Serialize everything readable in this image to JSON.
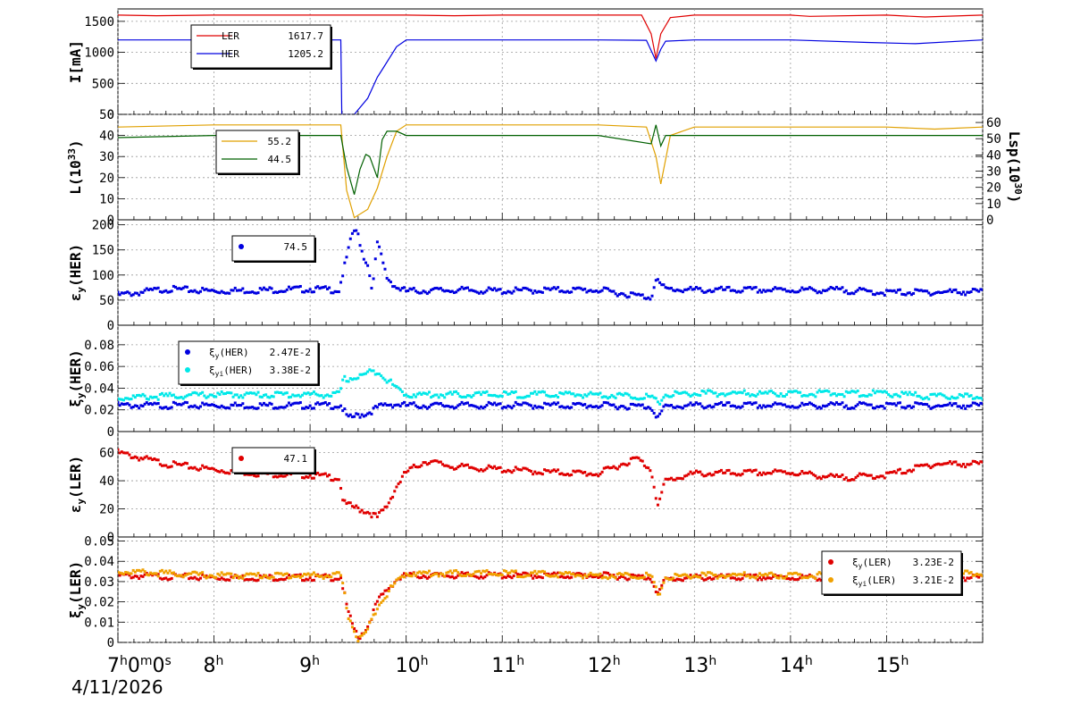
{
  "chart_data": [
    {
      "type": "line",
      "ylabel": "I[mA]",
      "ylim": [
        0,
        1700
      ],
      "yticks": [
        0,
        500,
        1000,
        1500
      ],
      "grid": true,
      "legend": {
        "placement": "top-left",
        "entries": [
          {
            "name": "LER",
            "value": "1617.7",
            "color": "#e00000"
          },
          {
            "name": "HER",
            "value": "1205.2",
            "color": "#0000e0"
          }
        ]
      },
      "series": [
        {
          "name": "LER",
          "color": "#e00000",
          "x": [
            7.0,
            7.4,
            8.0,
            9.0,
            9.5,
            10.0,
            10.5,
            11.0,
            12.0,
            12.45,
            12.55,
            12.6,
            12.65,
            12.75,
            13.0,
            14.0,
            14.2,
            15.0,
            15.4,
            16.0
          ],
          "y": [
            1600,
            1590,
            1600,
            1600,
            1600,
            1600,
            1590,
            1600,
            1600,
            1600,
            1300,
            900,
            1300,
            1560,
            1600,
            1600,
            1580,
            1600,
            1570,
            1600
          ]
        },
        {
          "name": "HER",
          "color": "#0000e0",
          "x": [
            7.0,
            9.32,
            9.33,
            9.46,
            9.6,
            9.7,
            9.75,
            9.9,
            10.0,
            11.0,
            12.0,
            12.5,
            12.6,
            12.65,
            12.7,
            13.0,
            14.0,
            14.8,
            15.3,
            16.0
          ],
          "y": [
            1200,
            1200,
            0,
            0,
            260,
            600,
            720,
            1090,
            1200,
            1200,
            1200,
            1195,
            860,
            1050,
            1180,
            1200,
            1200,
            1160,
            1140,
            1200
          ]
        }
      ]
    },
    {
      "type": "line",
      "ylabel": "L(10^33)",
      "y2label": "Lsp(10^30)",
      "ylim": [
        0,
        50
      ],
      "yticks": [
        0,
        10,
        20,
        30,
        40,
        50
      ],
      "y2lim": [
        0,
        65
      ],
      "y2ticks": [
        0,
        10,
        20,
        30,
        40,
        50,
        60
      ],
      "grid": true,
      "legend": {
        "placement": "top-left",
        "entries": [
          {
            "name": "",
            "value": "55.2",
            "color": "#e0a000"
          },
          {
            "name": "",
            "value": "44.5",
            "color": "#006000"
          }
        ]
      },
      "series": [
        {
          "color": "#e0a000",
          "x": [
            7.0,
            8.0,
            9.0,
            9.32,
            9.38,
            9.46,
            9.6,
            9.7,
            9.8,
            9.9,
            10.0,
            11.0,
            12.0,
            12.5,
            12.6,
            12.65,
            12.75,
            13.0,
            14.0,
            15.0,
            15.5,
            16.0
          ],
          "y": [
            44,
            45,
            45,
            45,
            14,
            1,
            5,
            15,
            30,
            42,
            45,
            45,
            45,
            44,
            30,
            17,
            40,
            44,
            44,
            44,
            43,
            44
          ]
        },
        {
          "color": "#006000",
          "x": [
            7.0,
            8.0,
            9.0,
            9.32,
            9.38,
            9.46,
            9.52,
            9.58,
            9.62,
            9.7,
            9.75,
            9.8,
            9.9,
            10.0,
            11.0,
            12.0,
            12.55,
            12.6,
            12.65,
            12.7,
            13.0,
            14.0,
            15.0,
            16.0
          ],
          "y": [
            39,
            40,
            40,
            40,
            25,
            12,
            24,
            31,
            30,
            20,
            38,
            42,
            42,
            40,
            40,
            40,
            36,
            45,
            35,
            40,
            40,
            40,
            40,
            40
          ]
        }
      ]
    },
    {
      "type": "scatter",
      "ylabel": "εy(HER)",
      "ylim": [
        0,
        210
      ],
      "yticks": [
        0,
        50,
        100,
        150,
        200
      ],
      "grid": true,
      "legend": {
        "placement": "top-left",
        "entries": [
          {
            "name": "",
            "value": "74.5",
            "color": "#0000e0"
          }
        ]
      },
      "series": [
        {
          "color": "#0000e0",
          "x": [
            7.0,
            7.5,
            8.0,
            8.5,
            9.0,
            9.3,
            9.45,
            9.5,
            9.55,
            9.6,
            9.65,
            9.7,
            9.75,
            9.8,
            9.85,
            9.9,
            10.0,
            10.5,
            11.0,
            11.5,
            12.0,
            12.55,
            12.6,
            12.65,
            12.7,
            13.0,
            13.5,
            14.0,
            14.5,
            15.0,
            15.5,
            16.0
          ],
          "y": [
            60,
            72,
            68,
            70,
            72,
            70,
            190,
            180,
            140,
            120,
            70,
            165,
            130,
            95,
            85,
            75,
            68,
            70,
            68,
            70,
            70,
            55,
            95,
            80,
            72,
            70,
            70,
            70,
            70,
            65,
            66,
            67
          ]
        }
      ]
    },
    {
      "type": "scatter",
      "ylabel": "ξy(HER)",
      "ylim": [
        0,
        0.098
      ],
      "yticks": [
        0,
        0.02,
        0.04,
        0.06,
        0.08
      ],
      "ytick_labels": [
        "0",
        "0.02",
        "0.04",
        "0.06",
        "0.08"
      ],
      "grid": true,
      "legend": {
        "placement": "top-left",
        "entries": [
          {
            "name": "ξy(HER)",
            "value": "2.47E-2",
            "color": "#0000e0"
          },
          {
            "name": "ξyi(HER)",
            "value": "3.38E-2",
            "color": "#00e8e8"
          }
        ]
      },
      "series": [
        {
          "name": "ξy(HER)",
          "color": "#0000e0",
          "x": [
            7.0,
            8.0,
            9.0,
            9.32,
            9.4,
            9.5,
            9.6,
            9.7,
            9.8,
            9.9,
            10.0,
            11.0,
            12.0,
            12.55,
            12.62,
            12.7,
            13.0,
            14.0,
            15.0,
            16.0
          ],
          "y": [
            0.024,
            0.024,
            0.024,
            0.024,
            0.012,
            0.015,
            0.017,
            0.022,
            0.025,
            0.025,
            0.024,
            0.024,
            0.024,
            0.023,
            0.013,
            0.023,
            0.024,
            0.024,
            0.024,
            0.024
          ]
        },
        {
          "name": "ξyi(HER)",
          "color": "#00e8e8",
          "x": [
            7.0,
            8.0,
            9.0,
            9.3,
            9.35,
            9.5,
            9.6,
            9.7,
            9.8,
            9.9,
            10.0,
            11.0,
            12.0,
            12.55,
            12.62,
            12.7,
            13.0,
            14.0,
            15.0,
            15.5,
            16.0
          ],
          "y": [
            0.031,
            0.034,
            0.034,
            0.034,
            0.048,
            0.05,
            0.054,
            0.056,
            0.048,
            0.04,
            0.034,
            0.034,
            0.034,
            0.032,
            0.026,
            0.034,
            0.035,
            0.035,
            0.035,
            0.032,
            0.032
          ]
        }
      ]
    },
    {
      "type": "scatter",
      "ylabel": "εy(LER)",
      "ylim": [
        0,
        75
      ],
      "yticks": [
        0,
        20,
        40,
        60
      ],
      "grid": true,
      "legend": {
        "placement": "top-left",
        "entries": [
          {
            "name": "",
            "value": "47.1",
            "color": "#e00000"
          }
        ]
      },
      "series": [
        {
          "color": "#e00000",
          "x": [
            7.0,
            7.5,
            8.0,
            8.5,
            9.0,
            9.3,
            9.35,
            9.5,
            9.6,
            9.7,
            9.8,
            9.9,
            10.0,
            10.2,
            10.5,
            11.0,
            11.5,
            12.0,
            12.4,
            12.55,
            12.62,
            12.7,
            13.0,
            14.0,
            14.5,
            15.0,
            15.5,
            16.0
          ],
          "y": [
            60,
            52,
            48,
            45,
            44,
            42,
            24,
            20,
            18,
            14,
            22,
            36,
            46,
            54,
            50,
            48,
            46,
            45,
            56,
            48,
            22,
            40,
            45,
            46,
            42,
            44,
            52,
            52
          ]
        }
      ]
    },
    {
      "type": "scatter",
      "ylabel": "ξy(LER)",
      "ylim": [
        0,
        0.052
      ],
      "yticks": [
        0,
        0.01,
        0.02,
        0.03,
        0.04,
        0.05
      ],
      "ytick_labels": [
        "0",
        "0.01",
        "0.02",
        "0.03",
        "0.04",
        "0.05"
      ],
      "xlim": [
        7,
        16
      ],
      "xtick_labels": [
        "7h0m0s",
        "8h",
        "9h",
        "10h",
        "11h",
        "12h",
        "13h",
        "14h",
        "15h"
      ],
      "date": "4/11/2026",
      "grid": true,
      "legend": {
        "placement": "top-right",
        "entries": [
          {
            "name": "ξy(LER)",
            "value": "3.23E-2",
            "color": "#e00000"
          },
          {
            "name": "ξyi(LER)",
            "value": "3.21E-2",
            "color": "#f0a000"
          }
        ]
      },
      "series": [
        {
          "name": "ξy(LER)",
          "color": "#e00000",
          "x": [
            7.0,
            8.0,
            9.0,
            9.32,
            9.4,
            9.5,
            9.6,
            9.7,
            9.8,
            9.9,
            10.0,
            11.0,
            12.0,
            12.55,
            12.62,
            12.7,
            13.0,
            14.0,
            15.0,
            16.0
          ],
          "y": [
            0.033,
            0.032,
            0.032,
            0.032,
            0.014,
            0.002,
            0.008,
            0.02,
            0.026,
            0.031,
            0.033,
            0.033,
            0.033,
            0.032,
            0.024,
            0.031,
            0.032,
            0.032,
            0.032,
            0.032
          ]
        },
        {
          "name": "ξyi(LER)",
          "color": "#f0a000",
          "x": [
            7.0,
            8.0,
            9.0,
            9.32,
            9.4,
            9.5,
            9.6,
            9.7,
            9.8,
            9.9,
            10.0,
            11.0,
            12.0,
            12.55,
            12.62,
            12.7,
            13.0,
            14.0,
            15.0,
            16.0
          ],
          "y": [
            0.035,
            0.033,
            0.033,
            0.033,
            0.013,
            0.001,
            0.006,
            0.018,
            0.024,
            0.03,
            0.034,
            0.034,
            0.033,
            0.033,
            0.023,
            0.032,
            0.033,
            0.033,
            0.033,
            0.034
          ]
        }
      ]
    }
  ]
}
